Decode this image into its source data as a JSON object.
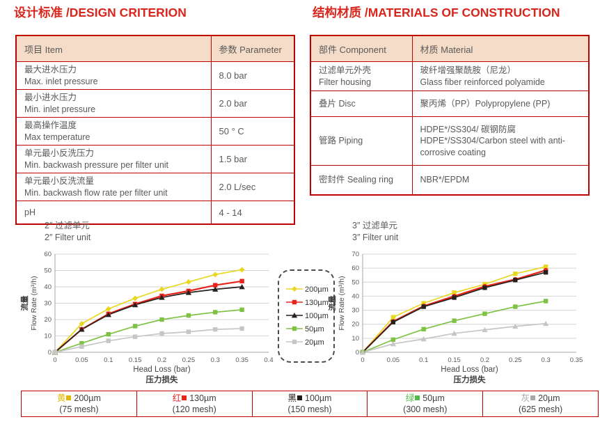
{
  "design": {
    "title": "设计标准 /DESIGN CRITERION",
    "col1": "项目 Item",
    "col2": "参数 Parameter",
    "rows": [
      {
        "cn": "最大进水压力",
        "en": "Max. inlet pressure",
        "value": "8.0 bar"
      },
      {
        "cn": "最小进水压力",
        "en": "Min. inlet pressure",
        "value": "2.0 bar"
      },
      {
        "cn": "最高操作温度",
        "en": "Max temperature",
        "value": "50 ° C"
      },
      {
        "cn": "单元最小反洗压力",
        "en": "Min. backwash pressure per filter unit",
        "value": "1.5 bar"
      },
      {
        "cn": "单元最小反洗流量",
        "en": "Min. backwash flow rate per filter unit",
        "value": "2.0 L/sec"
      },
      {
        "cn": "pH",
        "en": "",
        "value": "4 - 14"
      }
    ]
  },
  "materials": {
    "title": "结构材质 /MATERIALS OF CONSTRUCTION",
    "col1": "部件 Component",
    "col2": "材质 Material",
    "rows": [
      {
        "cn": "过滤单元外壳",
        "en": "Filter housing",
        "mat1": "玻纤增强聚酰胺（尼龙）",
        "mat2": "Glass fiber reinforced polyamide"
      },
      {
        "cn": "叠片 Disc",
        "en": "",
        "mat1": "聚丙烯（PP）Polypropylene (PP)",
        "mat2": ""
      },
      {
        "cn": "管路 Piping",
        "en": "",
        "mat1": "HDPE*/SS304/ 碳钢防腐",
        "mat2": "HDPE*/SS304/Carbon steel with anti-corrosive coating"
      },
      {
        "cn": "密封件 Sealing ring",
        "en": "",
        "mat1": "NBR*/EPDM",
        "mat2": ""
      }
    ]
  },
  "chart_data": [
    {
      "type": "line",
      "title_cn": "2″ 过滤单元",
      "title_en": "2″ Filter unit",
      "xlabel_en": "Head Loss (bar)",
      "xlabel_cn": "压力损失",
      "ylabel_cn": "流量",
      "ylabel_en": "Flow Rate (m³/h)",
      "xlim": [
        0,
        0.4
      ],
      "ylim": [
        0,
        60
      ],
      "xstep": 0.05,
      "ystep": 10,
      "grid": "horizontal",
      "legend_position": "between-charts",
      "x": [
        0,
        0.05,
        0.1,
        0.15,
        0.2,
        0.25,
        0.3,
        0.35
      ],
      "series": [
        {
          "name": "200µm",
          "color": "#e8d822",
          "marker": "diamond",
          "values": [
            0,
            17.5,
            26.5,
            33,
            38.5,
            43,
            47.5,
            50.5
          ]
        },
        {
          "name": "130µm",
          "color": "#e8231a",
          "marker": "square",
          "values": [
            0,
            14,
            23.5,
            29.5,
            34.5,
            37.5,
            41,
            43.5
          ]
        },
        {
          "name": "100µm",
          "color": "#26211e",
          "marker": "triangle",
          "values": [
            0,
            14,
            23,
            29,
            33.5,
            36.5,
            38.5,
            40
          ]
        },
        {
          "name": "50µm",
          "color": "#7dc242",
          "marker": "square",
          "values": [
            0,
            5.5,
            11,
            16,
            20,
            22.5,
            24.5,
            26
          ]
        },
        {
          "name": "20µm",
          "color": "#c6c6c6",
          "marker": "square",
          "values": [
            0,
            3.5,
            7,
            9.5,
            11.5,
            12.5,
            14,
            14.5
          ]
        }
      ]
    },
    {
      "type": "line",
      "title_cn": "3″ 过滤单元",
      "title_en": "3″ Filter unit",
      "xlabel_en": "Head Loss (bar)",
      "xlabel_cn": "压力损失",
      "ylabel_cn": "流量",
      "ylabel_en": "Flow Rate (m³/h)",
      "xlim": [
        0,
        0.35
      ],
      "ylim": [
        0,
        70
      ],
      "xstep": 0.05,
      "ystep": 10,
      "grid": "horizontal",
      "legend_position": "between-charts",
      "x": [
        0,
        0.05,
        0.1,
        0.15,
        0.2,
        0.25,
        0.3
      ],
      "series": [
        {
          "name": "200µm",
          "color": "#e8d822",
          "marker": "square",
          "values": [
            0,
            25,
            35,
            42.5,
            48.5,
            56,
            61
          ]
        },
        {
          "name": "130µm",
          "color": "#e8231a",
          "marker": "circle",
          "values": [
            0,
            22,
            33,
            40,
            47,
            52,
            58.5
          ]
        },
        {
          "name": "100µm",
          "color": "#26211e",
          "marker": "square",
          "values": [
            0,
            21.5,
            32.5,
            39,
            46,
            51.5,
            57
          ]
        },
        {
          "name": "50µm",
          "color": "#7dc242",
          "marker": "square",
          "values": [
            0,
            9,
            16.5,
            22.5,
            27.5,
            32.5,
            36.5
          ]
        },
        {
          "name": "20µm",
          "color": "#c6c6c6",
          "marker": "triangle",
          "values": [
            0,
            6,
            9.5,
            13.5,
            16,
            18.5,
            20.5
          ]
        }
      ]
    }
  ],
  "legend_box": {
    "items": [
      {
        "label": "200µm",
        "color": "#e8d822",
        "marker": "diamond"
      },
      {
        "label": "130µm",
        "color": "#e8231a",
        "marker": "square"
      },
      {
        "label": "100µm",
        "color": "#26211e",
        "marker": "triangle"
      },
      {
        "label": "50µm",
        "color": "#7dc242",
        "marker": "square"
      },
      {
        "label": "20µm",
        "color": "#c6c6c6",
        "marker": "square"
      }
    ]
  },
  "bottom_legend": {
    "items": [
      {
        "cn": "黄",
        "label": "200µm",
        "mesh": "(75 mesh)",
        "color": "#e2b807"
      },
      {
        "cn": "红",
        "label": "130µm",
        "mesh": "(120 mesh)",
        "color": "#e8231a"
      },
      {
        "cn": "黑",
        "label": "100µm",
        "mesh": "(150 mesh)",
        "color": "#1f1a17"
      },
      {
        "cn": "绿",
        "label": "50µm",
        "mesh": "(300 mesh)",
        "color": "#53b948"
      },
      {
        "cn": "灰",
        "label": "20µm",
        "mesh": "(625 mesh)",
        "color": "#a5a7a9"
      }
    ]
  },
  "colors": {
    "heading": "#d9261c",
    "table_border": "#c00000",
    "header_fill": "#f5dcc8",
    "body_text": "#595959",
    "gridline": "#d4d4d4"
  }
}
